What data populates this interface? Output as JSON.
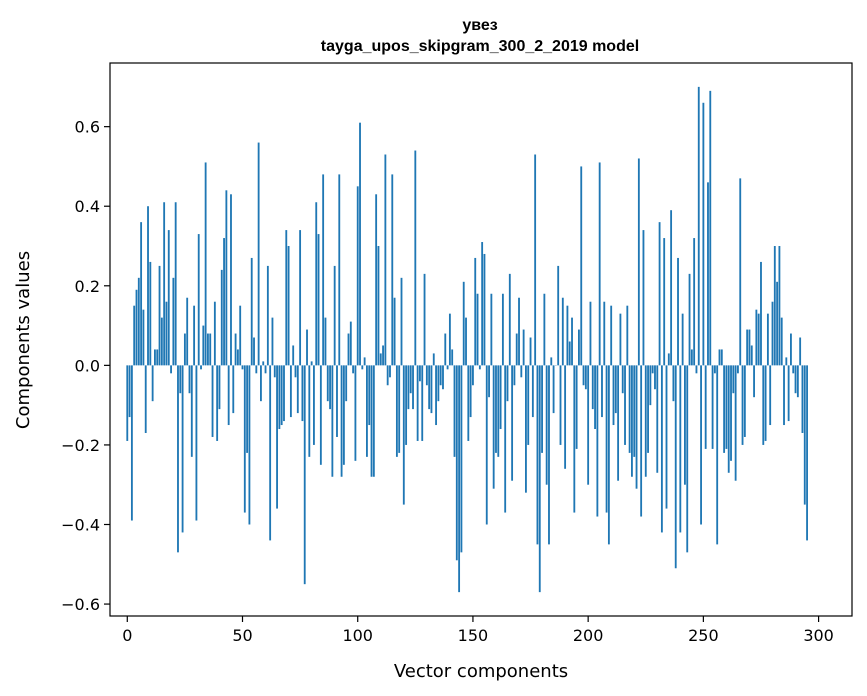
{
  "chart_data": {
    "type": "bar",
    "title_line1": "увез",
    "title_line2": "tayga_upos_skipgram_300_2_2019 model",
    "xlabel": "Vector components",
    "ylabel": "Components values",
    "xlim": [
      -7.5,
      314.5
    ],
    "ylim": [
      -0.63,
      0.76
    ],
    "xticks": [
      0,
      50,
      100,
      150,
      200,
      250,
      300
    ],
    "xtick_labels": [
      "0",
      "50",
      "100",
      "150",
      "200",
      "250",
      "300"
    ],
    "yticks": [
      -0.6,
      -0.4,
      -0.2,
      0.0,
      0.2,
      0.4,
      0.6
    ],
    "ytick_labels": [
      "−0.6",
      "−0.4",
      "−0.2",
      "0.0",
      "0.2",
      "0.4",
      "0.6"
    ],
    "bar_color": "#1f77b4",
    "grid": false,
    "values": [
      -0.19,
      -0.13,
      -0.39,
      0.15,
      0.19,
      0.22,
      0.36,
      0.14,
      -0.17,
      0.4,
      0.26,
      -0.09,
      0.04,
      0.04,
      0.25,
      0.12,
      0.41,
      0.16,
      0.34,
      -0.02,
      0.22,
      0.41,
      -0.47,
      -0.07,
      -0.42,
      0.08,
      0.17,
      -0.07,
      -0.23,
      0.15,
      -0.39,
      0.33,
      -0.01,
      0.1,
      0.51,
      0.08,
      0.08,
      -0.18,
      0.16,
      -0.19,
      -0.11,
      0.24,
      0.32,
      0.44,
      -0.15,
      0.43,
      -0.12,
      0.08,
      0.04,
      0.15,
      -0.01,
      -0.37,
      -0.22,
      -0.4,
      0.27,
      0.07,
      -0.02,
      0.56,
      -0.09,
      0.01,
      -0.02,
      0.25,
      -0.44,
      0.12,
      -0.03,
      -0.36,
      -0.16,
      -0.15,
      -0.14,
      0.34,
      0.3,
      -0.13,
      0.05,
      -0.03,
      -0.12,
      0.34,
      -0.14,
      -0.55,
      0.09,
      -0.23,
      0.01,
      -0.2,
      0.41,
      0.33,
      -0.25,
      0.48,
      0.12,
      -0.09,
      -0.11,
      -0.28,
      0.25,
      -0.18,
      0.48,
      -0.28,
      -0.25,
      -0.09,
      0.08,
      0.11,
      -0.02,
      -0.24,
      0.45,
      0.61,
      -0.01,
      0.02,
      -0.23,
      -0.15,
      -0.28,
      -0.28,
      0.43,
      0.3,
      0.03,
      0.05,
      0.53,
      -0.05,
      -0.03,
      0.48,
      0.17,
      -0.23,
      -0.22,
      0.22,
      -0.35,
      -0.2,
      -0.11,
      -0.07,
      -0.11,
      0.54,
      -0.19,
      -0.04,
      -0.19,
      0.23,
      -0.05,
      -0.11,
      -0.12,
      0.03,
      -0.15,
      -0.09,
      -0.05,
      -0.06,
      0.08,
      -0.01,
      0.13,
      0.04,
      -0.23,
      -0.49,
      -0.57,
      -0.47,
      0.21,
      0.12,
      -0.19,
      -0.13,
      -0.05,
      0.27,
      0.18,
      -0.01,
      0.31,
      0.28,
      -0.4,
      -0.08,
      0.18,
      -0.31,
      -0.22,
      -0.23,
      -0.16,
      0.18,
      -0.37,
      -0.09,
      0.23,
      -0.29,
      -0.05,
      0.08,
      0.17,
      -0.03,
      0.09,
      -0.32,
      -0.2,
      0.07,
      -0.13,
      0.53,
      -0.45,
      -0.57,
      -0.22,
      0.18,
      -0.3,
      -0.45,
      0.02,
      -0.12,
      0.0,
      0.25,
      -0.2,
      0.17,
      -0.26,
      0.15,
      0.06,
      0.12,
      -0.37,
      -0.21,
      0.09,
      0.5,
      -0.05,
      -0.06,
      -0.3,
      0.16,
      -0.11,
      -0.16,
      -0.38,
      0.51,
      -0.13,
      0.16,
      -0.37,
      -0.45,
      0.15,
      -0.15,
      -0.12,
      -0.29,
      0.13,
      -0.07,
      -0.2,
      0.15,
      -0.22,
      -0.28,
      -0.23,
      -0.31,
      0.52,
      -0.38,
      0.34,
      -0.28,
      -0.22,
      -0.1,
      -0.02,
      -0.06,
      -0.27,
      0.36,
      -0.42,
      0.32,
      -0.36,
      0.03,
      0.39,
      -0.09,
      -0.51,
      0.27,
      -0.42,
      0.13,
      -0.3,
      -0.47,
      0.23,
      0.04,
      0.32,
      -0.02,
      0.7,
      -0.4,
      0.66,
      -0.21,
      0.46,
      0.69,
      -0.21,
      -0.02,
      -0.45,
      0.04,
      0.04,
      -0.22,
      -0.21,
      -0.27,
      -0.24,
      -0.07,
      -0.29,
      -0.02,
      0.47,
      -0.2,
      -0.18,
      0.09,
      0.09,
      0.05,
      -0.08,
      0.14,
      0.13,
      0.26,
      -0.2,
      -0.19,
      0.13,
      -0.15,
      0.16,
      0.3,
      0.21,
      0.3,
      0.12,
      -0.15,
      0.02,
      -0.14,
      0.08,
      -0.02,
      -0.07,
      -0.08,
      0.07,
      -0.17,
      -0.35,
      -0.44
    ]
  }
}
